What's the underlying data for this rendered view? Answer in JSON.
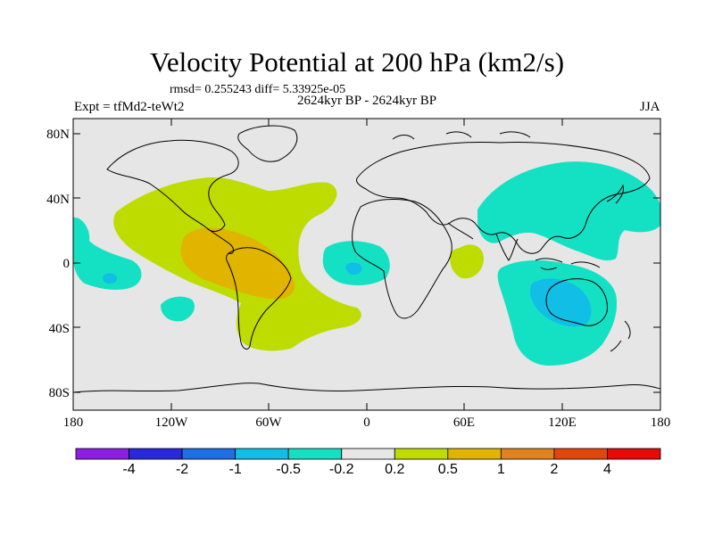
{
  "title": "Velocity Potential at 200 hPa (km2/s)",
  "stats": "rmsd= 0.255243 diff= 5.33925e-05",
  "period": "2624kyr BP - 2624kyr BP",
  "experiment": "Expt = tfMd2-teWt2",
  "season": "JJA",
  "lat_labels": [
    "80N",
    "40N",
    "0",
    "40S",
    "80S"
  ],
  "lon_labels": [
    "180",
    "120W",
    "60W",
    "0",
    "60E",
    "120E",
    "180"
  ],
  "colorbar": {
    "colors": [
      "#8c1ee6",
      "#2828dc",
      "#1e6ee6",
      "#10bee6",
      "#14e1c3",
      "#e6e6e6",
      "#bedc00",
      "#e1b400",
      "#e1821e",
      "#e1460a",
      "#e60a0a"
    ],
    "labels": [
      "-4",
      "-2",
      "-1",
      "-0.5",
      "-0.2",
      "0.2",
      "0.5",
      "1",
      "2",
      "4"
    ]
  },
  "palette": {
    "background": "#e6e6e6",
    "pos_0_2": "#bedc00",
    "pos_0_5": "#e1b400",
    "neg_0_2": "#14e1c3",
    "neg_0_5": "#10bee6"
  }
}
